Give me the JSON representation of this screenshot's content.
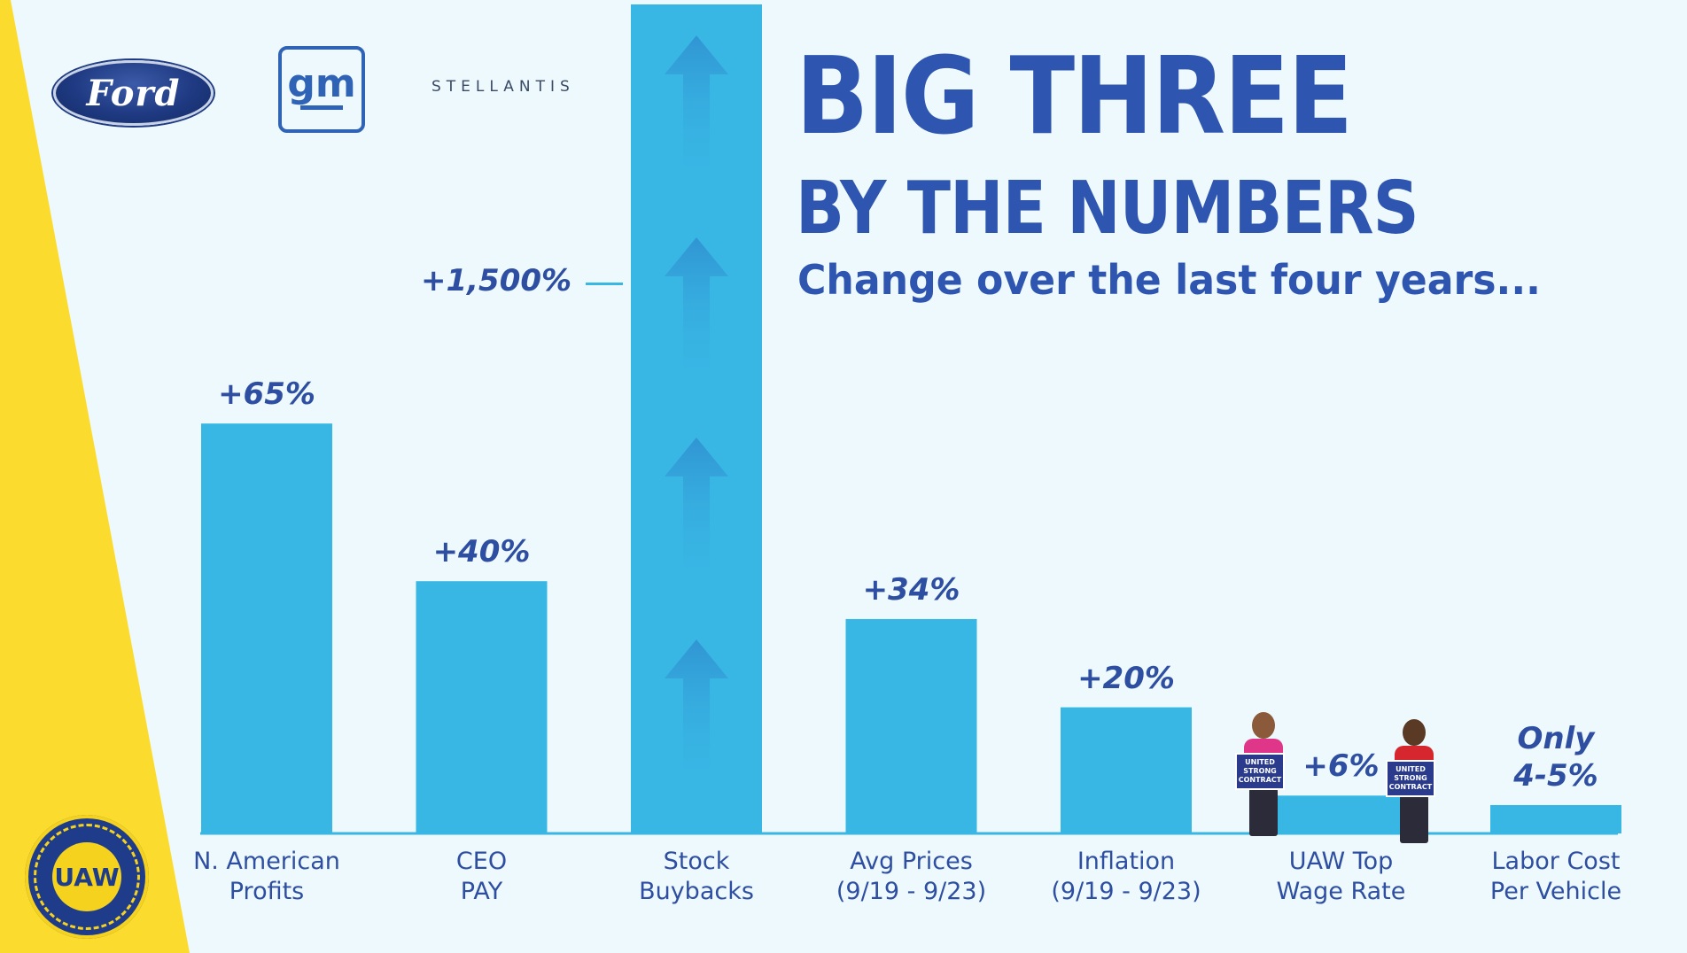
{
  "logos": {
    "ford": "Ford",
    "gm": "gm",
    "stellantis": "STELLANTIS",
    "uaw": "UAW"
  },
  "title_line1": "BIG THREE",
  "title_line2": "BY THE NUMBERS",
  "subtitle": "Change over the last four years...",
  "colors": {
    "bar": "#38b6e4",
    "text": "#2e4fa1",
    "title": "#2e56b0",
    "wedge": "#fbdc2e",
    "background": "#eef9fd"
  },
  "person_signs": {
    "left": "UNITED STRONG CONTRACT",
    "right": "UNITED STRONG CONTRACT"
  },
  "chart_data": {
    "type": "bar",
    "title": "BIG THREE BY THE NUMBERS",
    "subtitle": "Change over the last four years...",
    "categories": [
      "N. American\nProfits",
      "CEO\nPAY",
      "Stock\nBuybacks",
      "Avg Prices\n(9/19 - 9/23)",
      "Inflation\n(9/19 - 9/23)",
      "UAW Top\nWage Rate",
      "Labor Cost\nPer Vehicle"
    ],
    "values": [
      65,
      40,
      1500,
      34,
      20,
      6,
      4.5
    ],
    "value_labels": [
      "+65%",
      "+40%",
      "+1,500%",
      "+34%",
      "+20%",
      "+6%",
      "Only\n4-5%"
    ],
    "ylabel": "",
    "xlabel": "",
    "unit": "%",
    "grid": false,
    "legend": "none",
    "note": "Stock Buybacks bar is truncated at the top of the image with upward arrows"
  }
}
